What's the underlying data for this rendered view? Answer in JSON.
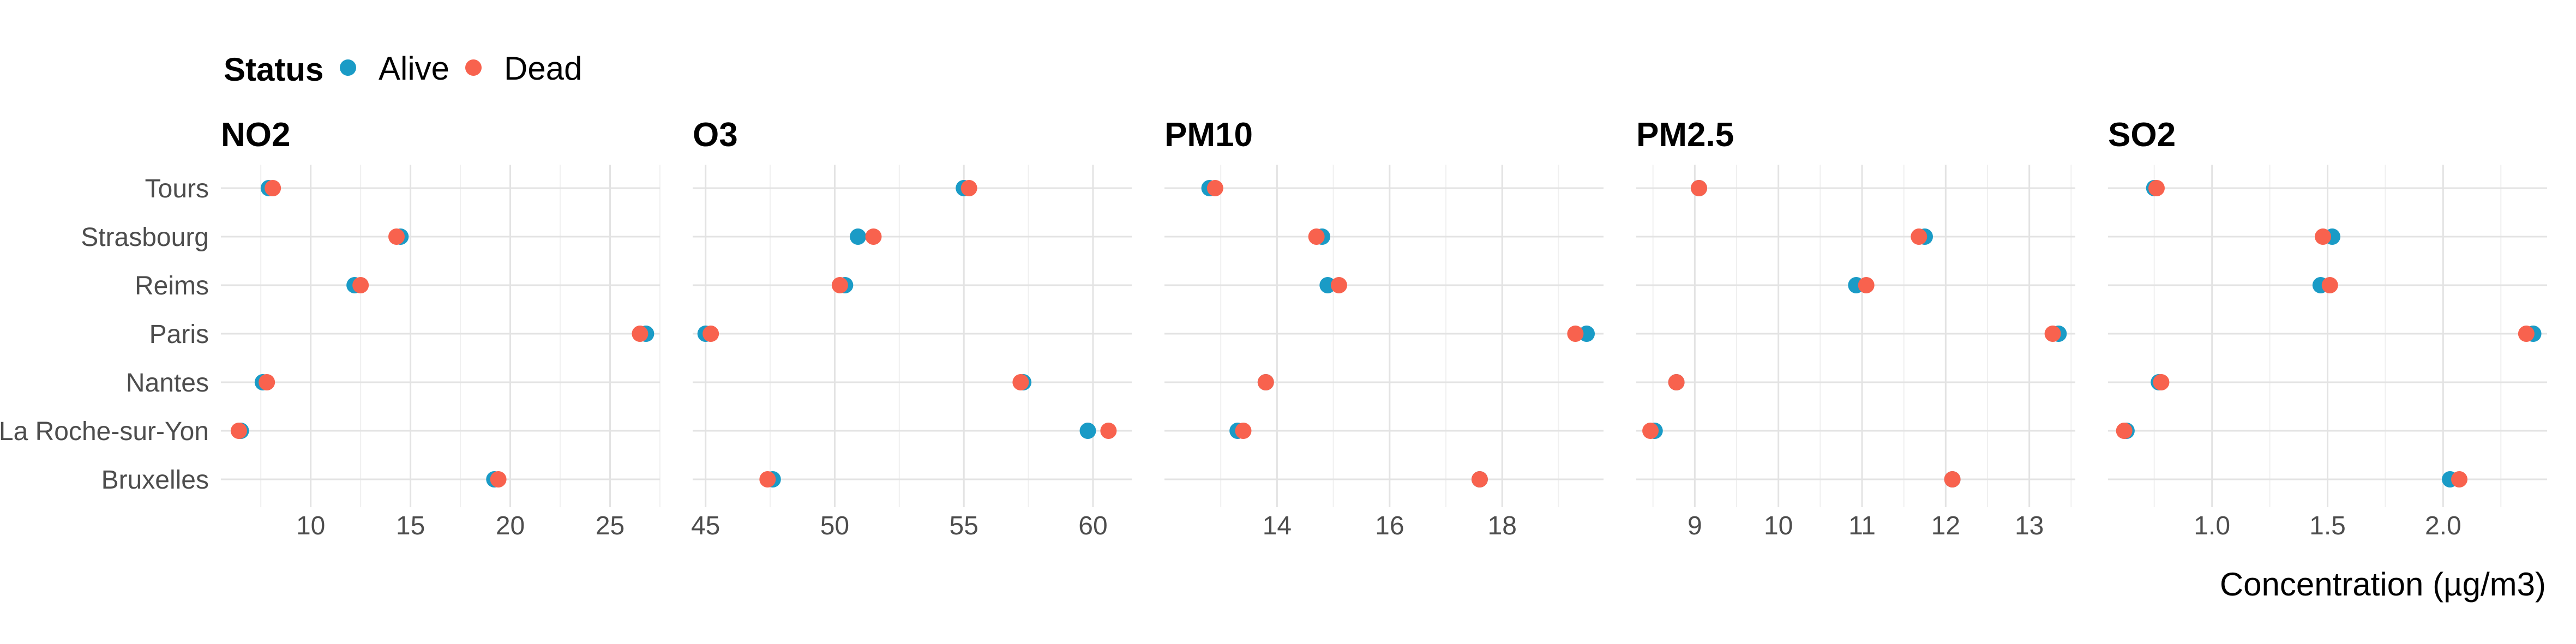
{
  "chart_data": {
    "type": "scatter",
    "legend": {
      "title": "Status",
      "entries": [
        {
          "name": "Alive",
          "color": "#1a9bc6"
        },
        {
          "name": "Dead",
          "color": "#f8624e"
        }
      ],
      "placement": "top-left"
    },
    "xlabel": "Concentration (µg/m3)",
    "categories": [
      "Tours",
      "Strasbourg",
      "Reims",
      "Paris",
      "Nantes",
      "La Roche-sur-Yon",
      "Bruxelles"
    ],
    "grid": true,
    "panels": [
      {
        "title": "NO2",
        "xlim": [
          5.5,
          27.5
        ],
        "ticks": [
          10,
          15,
          20,
          25
        ],
        "tick_labels": [
          "10",
          "15",
          "20",
          "25"
        ],
        "series": [
          {
            "name": "Alive",
            "values": [
              7.9,
              14.5,
              12.2,
              26.8,
              7.6,
              6.5,
              19.2
            ]
          },
          {
            "name": "Dead",
            "values": [
              8.1,
              14.3,
              12.5,
              26.5,
              7.8,
              6.4,
              19.4
            ]
          }
        ]
      },
      {
        "title": "O3",
        "xlim": [
          44.5,
          61.5
        ],
        "ticks": [
          45,
          50,
          55,
          60
        ],
        "tick_labels": [
          "45",
          "50",
          "55",
          "60"
        ],
        "series": [
          {
            "name": "Alive",
            "values": [
              55.0,
              50.9,
              50.4,
              45.0,
              57.3,
              59.8,
              47.6
            ]
          },
          {
            "name": "Dead",
            "values": [
              55.2,
              51.5,
              50.2,
              45.2,
              57.2,
              60.6,
              47.4
            ]
          }
        ]
      },
      {
        "title": "PM10",
        "xlim": [
          12.0,
          19.8
        ],
        "ticks": [
          14,
          16,
          18
        ],
        "tick_labels": [
          "14",
          "16",
          "18"
        ],
        "series": [
          {
            "name": "Alive",
            "values": [
              12.8,
              14.8,
              14.9,
              19.5,
              13.8,
              13.3,
              17.6
            ]
          },
          {
            "name": "Dead",
            "values": [
              12.9,
              14.7,
              15.1,
              19.3,
              13.8,
              13.4,
              17.6
            ]
          }
        ]
      },
      {
        "title": "PM2.5",
        "xlim": [
          8.3,
          13.55
        ],
        "ticks": [
          9,
          10,
          11,
          12,
          13
        ],
        "tick_labels": [
          "9",
          "10",
          "11",
          "12",
          "13"
        ],
        "series": [
          {
            "name": "Alive",
            "values": [
              9.05,
              11.75,
              10.93,
              13.35,
              8.78,
              8.52,
              12.08
            ]
          },
          {
            "name": "Dead",
            "values": [
              9.05,
              11.68,
              11.05,
              13.28,
              8.78,
              8.47,
              12.08
            ]
          }
        ]
      },
      {
        "title": "SO2",
        "xlim": [
          0.55,
          2.45
        ],
        "ticks": [
          1.0,
          1.5,
          2.0
        ],
        "tick_labels": [
          "1.0",
          "1.5",
          "2.0"
        ],
        "series": [
          {
            "name": "Alive",
            "values": [
              0.75,
              1.52,
              1.47,
              2.39,
              0.77,
              0.63,
              2.03
            ]
          },
          {
            "name": "Dead",
            "values": [
              0.76,
              1.48,
              1.51,
              2.36,
              0.78,
              0.62,
              2.07
            ]
          }
        ]
      }
    ]
  }
}
